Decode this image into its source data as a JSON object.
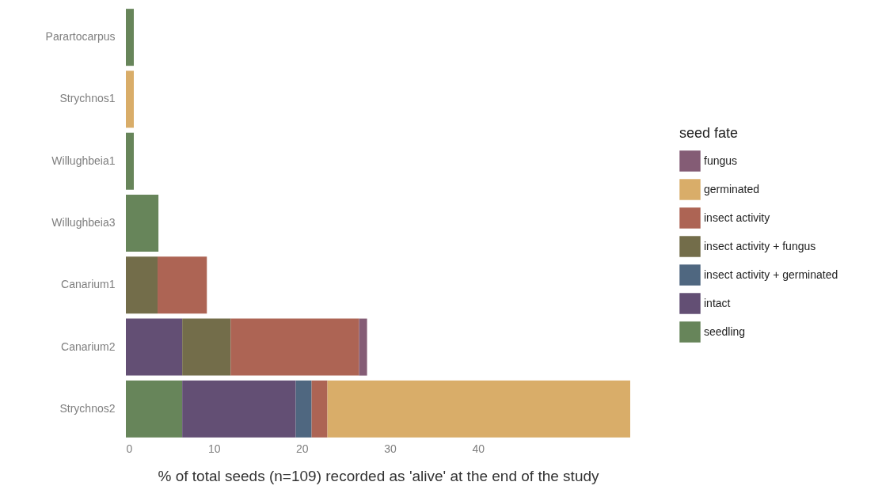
{
  "chart_data": {
    "type": "bar",
    "orientation": "horizontal",
    "stacked": true,
    "categories": [
      "Parartocarpus",
      "Strychnos1",
      "Willughbeia1",
      "Willughbeia3",
      "Canarium1",
      "Canarium2",
      "Strychnos2"
    ],
    "series": [
      {
        "name": "seedling",
        "color": "#67855a",
        "values": [
          0.9,
          null,
          0.9,
          3.7,
          null,
          null,
          6.4
        ]
      },
      {
        "name": "intact",
        "color": "#634f74",
        "values": [
          null,
          null,
          null,
          null,
          null,
          6.4,
          12.9
        ]
      },
      {
        "name": "insect activity + germinated",
        "color": "#4f6780",
        "values": [
          null,
          null,
          null,
          null,
          null,
          null,
          1.8
        ]
      },
      {
        "name": "insect activity + fungus",
        "color": "#736d4a",
        "values": [
          null,
          null,
          null,
          null,
          3.6,
          5.5,
          null
        ]
      },
      {
        "name": "insect activity",
        "color": "#ad6454",
        "values": [
          null,
          null,
          null,
          null,
          5.6,
          14.6,
          1.8
        ]
      },
      {
        "name": "germinated",
        "color": "#d9ad69",
        "values": [
          null,
          0.9,
          null,
          null,
          null,
          null,
          34.4
        ]
      },
      {
        "name": "fungus",
        "color": "#845c75",
        "values": [
          null,
          null,
          null,
          null,
          null,
          0.9,
          null
        ]
      }
    ],
    "xlim": [
      0,
      57.3
    ],
    "xticks": [
      0,
      10,
      20,
      30,
      40
    ],
    "grid": false,
    "legend": "right",
    "legend_title": "seed fate",
    "xlabel": "% of total seeds (n=109) recorded as 'alive' at the end of the study"
  }
}
